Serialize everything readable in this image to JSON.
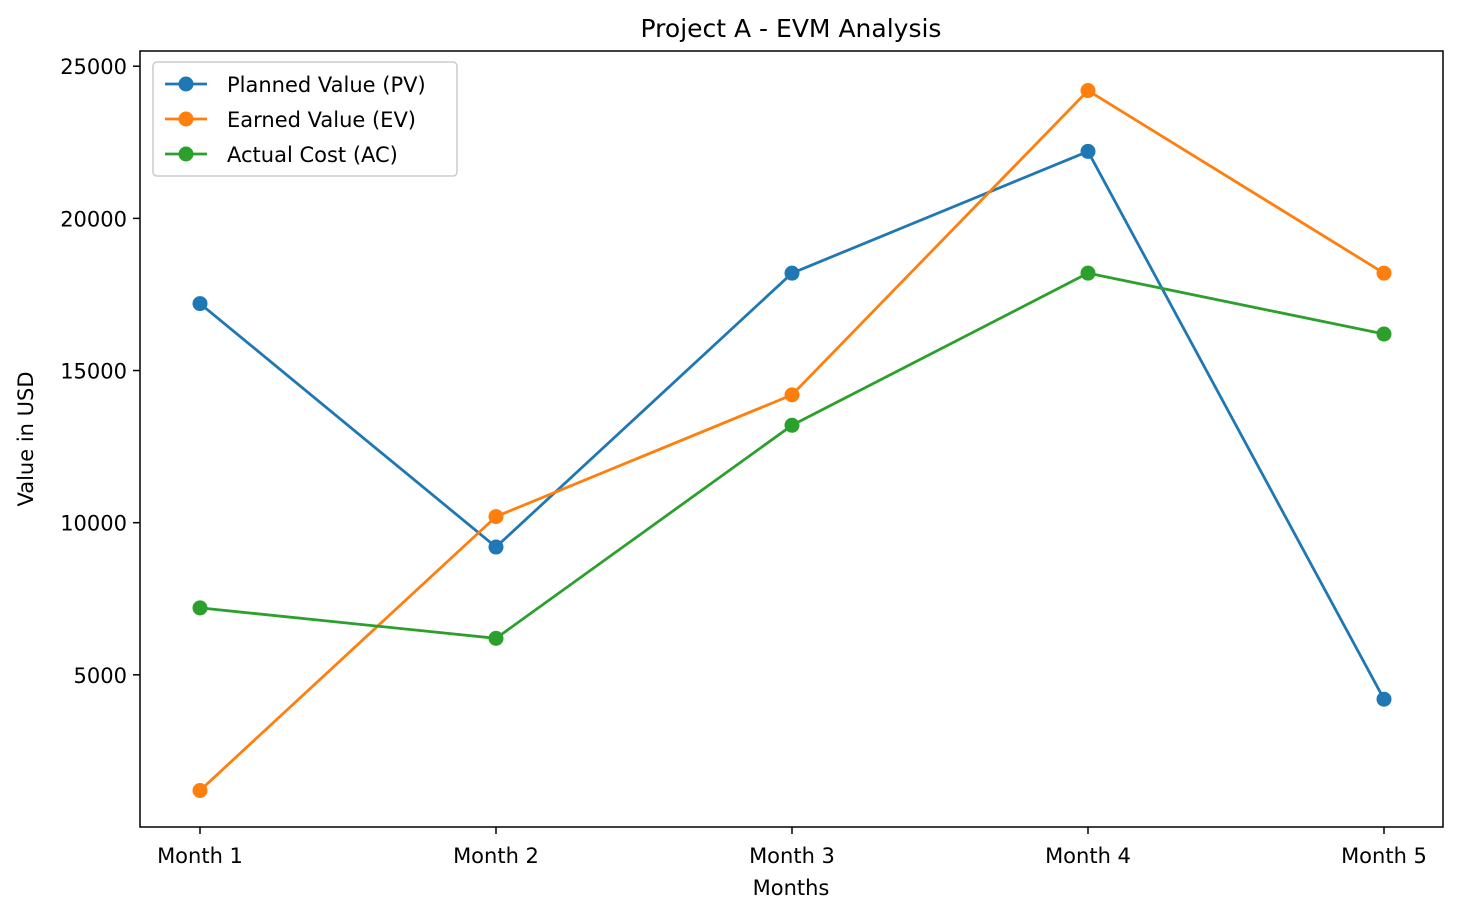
{
  "chart_data": {
    "type": "line",
    "title": "Project A - EVM Analysis",
    "xlabel": "Months",
    "ylabel": "Value in USD",
    "categories": [
      "Month 1",
      "Month 2",
      "Month 3",
      "Month 4",
      "Month 5"
    ],
    "ylim": [
      0,
      25500
    ],
    "yticks": [
      5000,
      10000,
      15000,
      20000,
      25000
    ],
    "grid": false,
    "legend_position": "top-left",
    "series": [
      {
        "name": "Planned Value (PV)",
        "color": "#1f77b4",
        "values": [
          17200,
          9200,
          18200,
          22200,
          4200
        ]
      },
      {
        "name": "Earned Value (EV)",
        "color": "#ff7f0e",
        "values": [
          1200,
          10200,
          14200,
          24200,
          18200
        ]
      },
      {
        "name": "Actual Cost (AC)",
        "color": "#2ca02c",
        "values": [
          7200,
          6200,
          13200,
          18200,
          16200
        ]
      }
    ]
  }
}
